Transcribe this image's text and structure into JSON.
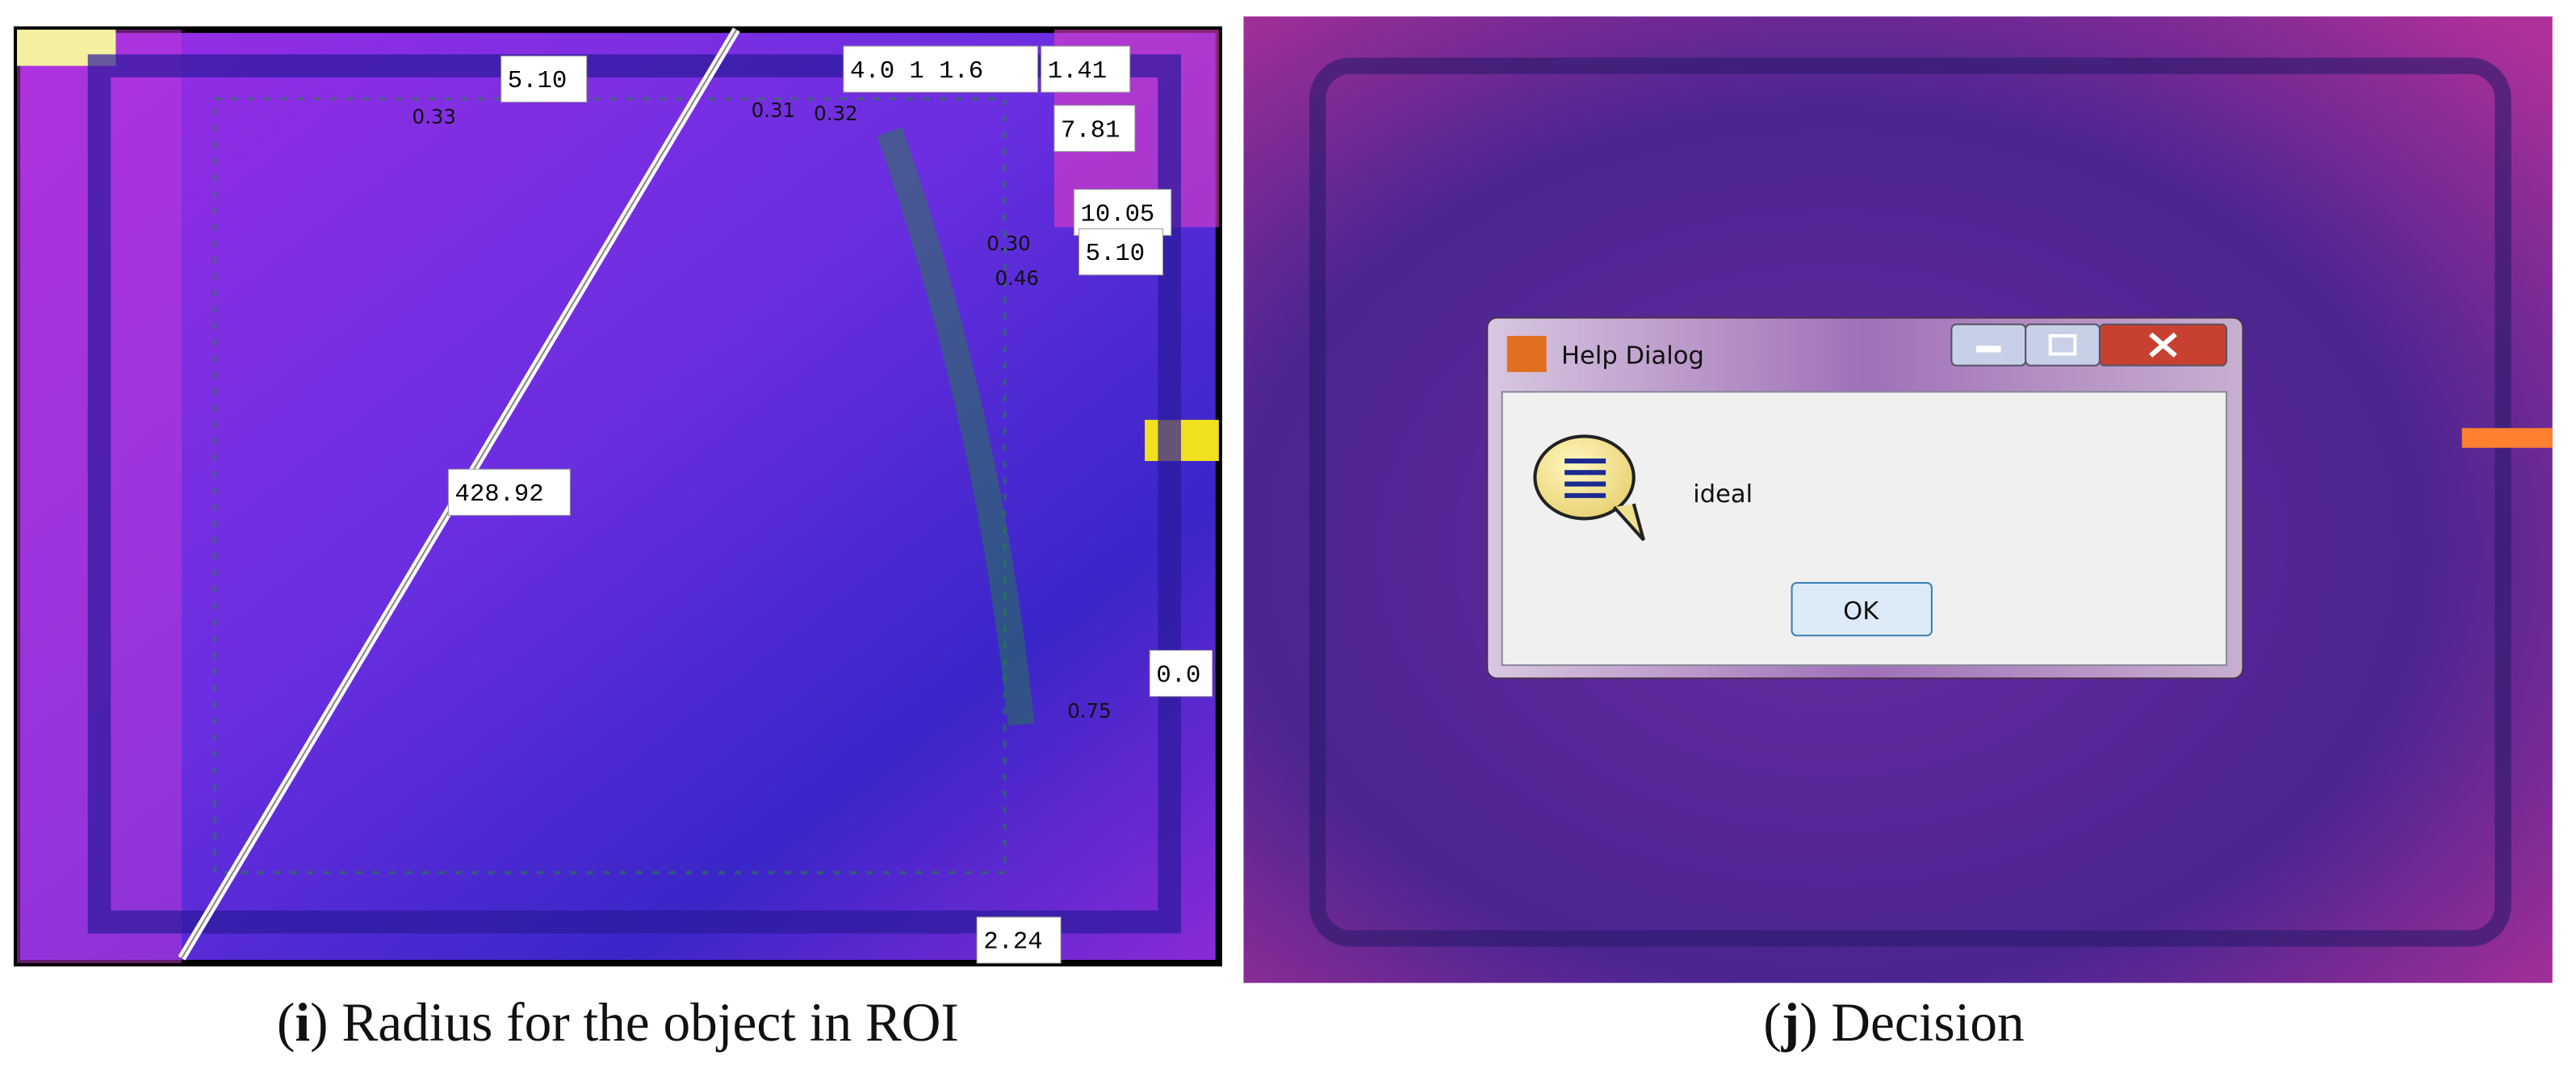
{
  "left_panel": {
    "labels": [
      "5.10",
      "0.33",
      "4.0 1 1.6",
      "1.41",
      "0.31",
      "0.32",
      "7.81",
      "10.05",
      "5.10",
      "0.30",
      "0.46",
      "428.92",
      "0.0",
      "0.75",
      "2.24"
    ],
    "caption": [
      "(",
      "i",
      ") Radius for the object in ROI"
    ]
  },
  "right_panel": {
    "dialog": {
      "title": "Help Dialog",
      "message": "ideal",
      "button": "OK"
    },
    "caption": [
      "(",
      "j",
      ") Decision"
    ]
  }
}
